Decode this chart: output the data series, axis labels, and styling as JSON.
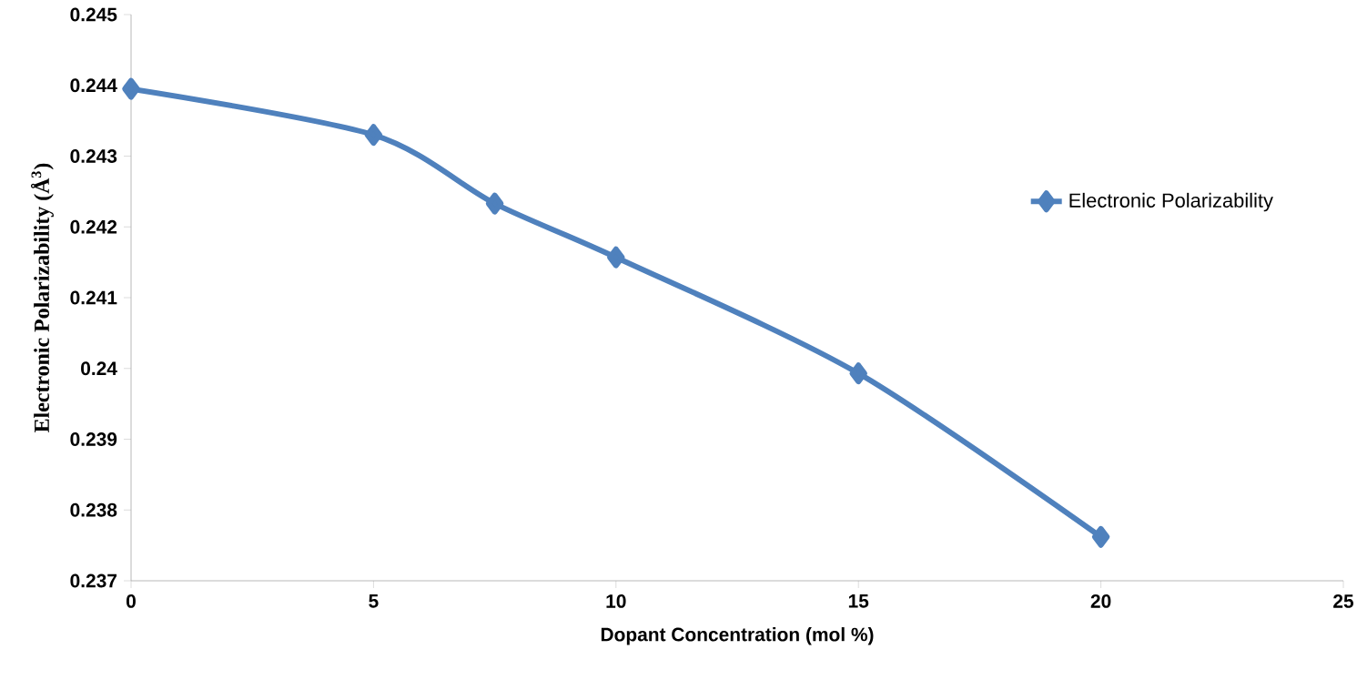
{
  "chart_data": {
    "type": "line",
    "xlabel": "Dopant Concentration (mol %)",
    "ylabel": "Electronic  Polarizability  (Å$^{3}$)",
    "x": [
      0,
      5,
      7.5,
      10,
      15,
      20
    ],
    "series": [
      {
        "name": "Electronic Polarizability",
        "color": "#4f81bd",
        "values": [
          0.24395,
          0.2433,
          0.24233,
          0.24157,
          0.23993,
          0.23762
        ]
      }
    ],
    "xlim": [
      0,
      25
    ],
    "xticks": [
      0,
      5,
      10,
      15,
      20,
      25
    ],
    "ylim": [
      0.237,
      0.245
    ],
    "yticks": [
      0.237,
      0.238,
      0.239,
      0.24,
      0.241,
      0.242,
      0.243,
      0.244,
      0.245
    ],
    "marker": "diamond",
    "line_style": "solid",
    "legend": "right",
    "grid": false
  }
}
